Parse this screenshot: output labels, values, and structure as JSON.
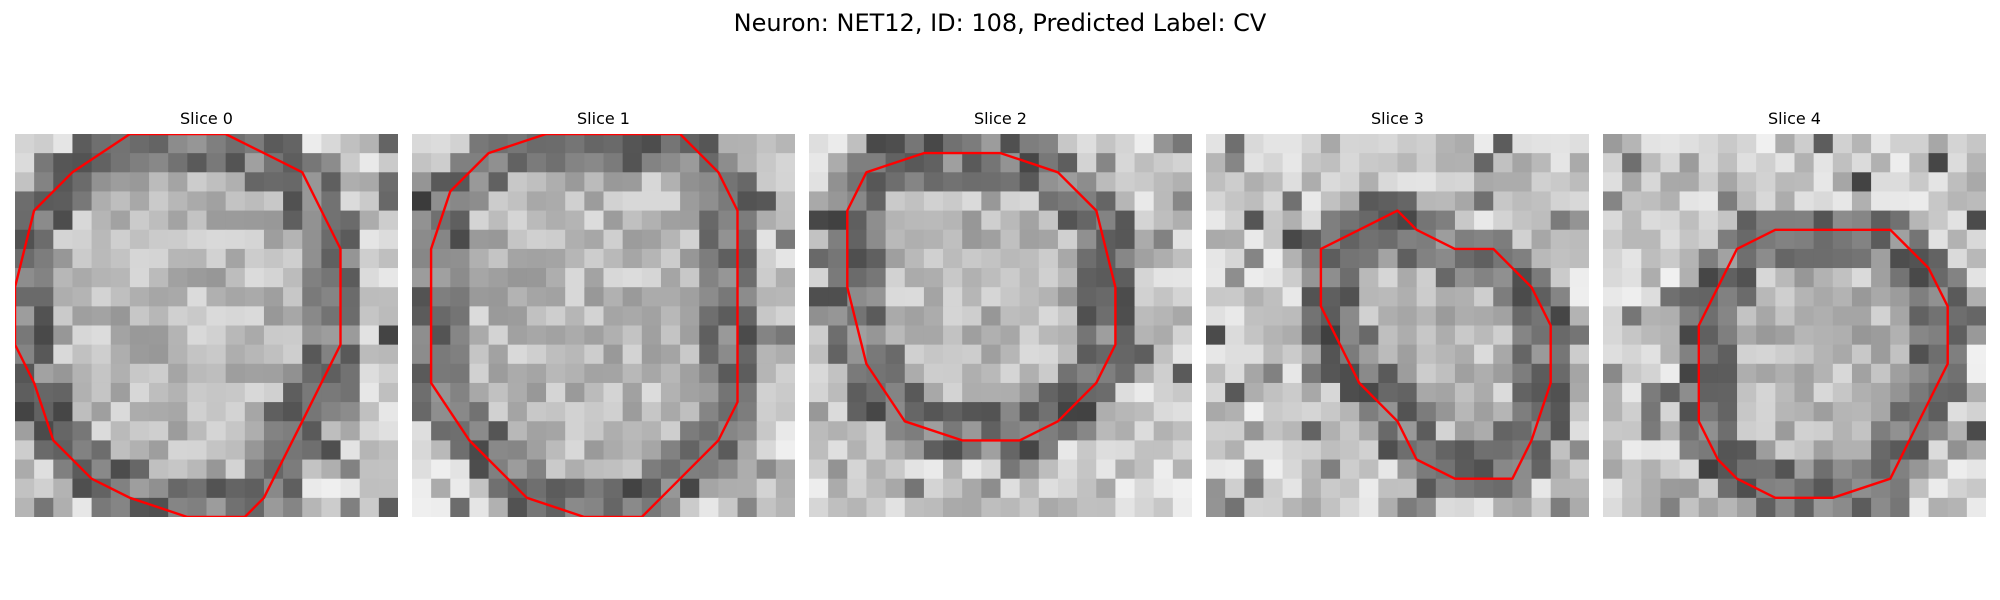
{
  "figure": {
    "title": "Neuron: NET12, ID: 108, Predicted Label: CV"
  },
  "colors": {
    "contour": "#ff0000",
    "background": "#ffffff"
  },
  "panels": [
    {
      "title": "Slice 0",
      "image": "grayscale electron microscopy patch",
      "contour": [
        [
          6,
          0
        ],
        [
          3,
          2
        ],
        [
          1,
          4
        ],
        [
          0,
          8
        ],
        [
          0,
          11
        ],
        [
          1,
          13
        ],
        [
          2,
          16
        ],
        [
          4,
          18
        ],
        [
          6,
          19
        ],
        [
          9,
          20
        ],
        [
          12,
          20
        ],
        [
          13,
          19
        ],
        [
          14,
          17
        ],
        [
          15,
          15
        ],
        [
          16,
          13
        ],
        [
          17,
          11
        ],
        [
          17,
          6
        ],
        [
          16,
          4
        ],
        [
          15,
          2
        ],
        [
          13,
          1
        ],
        [
          11,
          0
        ],
        [
          9,
          0
        ]
      ]
    },
    {
      "title": "Slice 1",
      "image": "grayscale electron microscopy patch",
      "contour": [
        [
          7,
          0
        ],
        [
          4,
          1
        ],
        [
          2,
          3
        ],
        [
          1,
          6
        ],
        [
          1,
          13
        ],
        [
          3,
          16
        ],
        [
          6,
          19
        ],
        [
          9,
          20
        ],
        [
          12,
          20
        ],
        [
          14,
          18
        ],
        [
          16,
          16
        ],
        [
          17,
          14
        ],
        [
          17,
          4
        ],
        [
          16,
          2
        ],
        [
          14,
          0
        ]
      ]
    },
    {
      "title": "Slice 2",
      "image": "grayscale electron microscopy patch",
      "contour": [
        [
          6,
          1
        ],
        [
          3,
          2
        ],
        [
          2,
          4
        ],
        [
          2,
          8
        ],
        [
          3,
          12
        ],
        [
          5,
          15
        ],
        [
          8,
          16
        ],
        [
          11,
          16
        ],
        [
          13,
          15
        ],
        [
          15,
          13
        ],
        [
          16,
          11
        ],
        [
          16,
          8
        ],
        [
          15,
          4
        ],
        [
          13,
          2
        ],
        [
          10,
          1
        ]
      ]
    },
    {
      "title": "Slice 3",
      "image": "grayscale electron microscopy patch",
      "contour": [
        [
          8,
          5
        ],
        [
          6,
          6
        ],
        [
          6,
          9
        ],
        [
          7,
          11
        ],
        [
          8,
          13
        ],
        [
          10,
          15
        ],
        [
          11,
          17
        ],
        [
          13,
          18
        ],
        [
          16,
          18
        ],
        [
          17,
          16
        ],
        [
          18,
          13
        ],
        [
          18,
          10
        ],
        [
          17,
          8
        ],
        [
          15,
          6
        ],
        [
          13,
          6
        ],
        [
          11,
          5
        ],
        [
          10,
          4
        ]
      ]
    },
    {
      "title": "Slice 4",
      "image": "grayscale electron microscopy patch",
      "contour": [
        [
          12,
          5
        ],
        [
          9,
          5
        ],
        [
          7,
          6
        ],
        [
          6,
          8
        ],
        [
          5,
          10
        ],
        [
          5,
          15
        ],
        [
          6,
          17
        ],
        [
          7,
          18
        ],
        [
          9,
          19
        ],
        [
          12,
          19
        ],
        [
          15,
          18
        ],
        [
          16,
          16
        ],
        [
          17,
          14
        ],
        [
          18,
          12
        ],
        [
          18,
          9
        ],
        [
          17,
          7
        ],
        [
          15,
          5
        ]
      ]
    }
  ]
}
